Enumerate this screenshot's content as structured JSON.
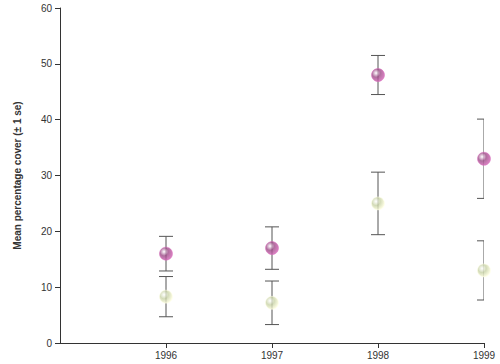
{
  "chart_data": {
    "type": "scatter",
    "y_label": "Mean percentage cover (± 1 se)",
    "x": [
      1996,
      1997,
      1998,
      1999
    ],
    "series": [
      {
        "color": "#9c4a86",
        "marker": "circle",
        "values": [
          16,
          17,
          48,
          33
        ],
        "errors": [
          3.1,
          3.8,
          3.5,
          7.1
        ]
      },
      {
        "color": "#c8d2a6",
        "marker": "circle",
        "values": [
          8.3,
          7.2,
          25,
          13
        ],
        "errors": [
          3.6,
          3.9,
          5.6,
          5.3
        ]
      }
    ],
    "xlim": [
      1995,
      1999
    ],
    "xticks": [
      1996,
      1997,
      1998,
      1999
    ],
    "ylim": [
      0,
      60
    ],
    "yticks": [
      0,
      10,
      20,
      30,
      40,
      50,
      60
    ],
    "grid": false
  }
}
